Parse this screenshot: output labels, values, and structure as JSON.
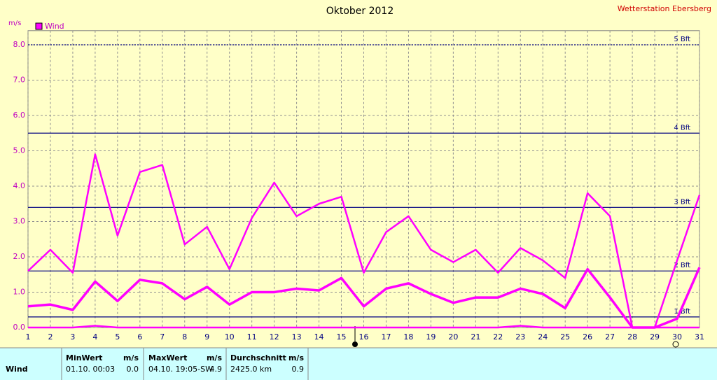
{
  "chart_data": {
    "type": "line",
    "title": "Oktober 2012",
    "station": "Wetterstation Ebersberg",
    "y_label": "m/s",
    "categories": [
      "1",
      "2",
      "3",
      "4",
      "5",
      "6",
      "7",
      "8",
      "9",
      "10",
      "11",
      "12",
      "13",
      "14",
      "15",
      "16",
      "17",
      "18",
      "19",
      "20",
      "21",
      "22",
      "23",
      "24",
      "25",
      "26",
      "27",
      "28",
      "29",
      "30",
      "31"
    ],
    "series": [
      {
        "name": "Wind",
        "color": "#ff00ff",
        "width": 3.5,
        "values": [
          0.6,
          0.65,
          0.5,
          1.3,
          0.75,
          1.35,
          1.25,
          0.8,
          1.15,
          0.65,
          1.0,
          1.0,
          1.1,
          1.05,
          1.4,
          0.6,
          1.1,
          1.25,
          0.95,
          0.7,
          0.85,
          0.85,
          1.1,
          0.95,
          0.55,
          1.65,
          0.85,
          0,
          0,
          0.25,
          1.7
        ]
      },
      {
        "color": "#ff00ff",
        "width": 2.5,
        "values": [
          1.6,
          2.2,
          1.55,
          4.9,
          2.6,
          4.4,
          4.6,
          2.35,
          2.85,
          1.65,
          3.1,
          4.1,
          3.15,
          3.5,
          3.7,
          1.55,
          2.7,
          3.15,
          2.2,
          1.85,
          2.2,
          1.55,
          2.25,
          1.9,
          1.4,
          3.8,
          3.15,
          0,
          0,
          1.9,
          3.75
        ]
      },
      {
        "color": "#ff00ff",
        "width": 2.5,
        "values": [
          0,
          0,
          0,
          0.05,
          0,
          0,
          0,
          0,
          0,
          0,
          0,
          0,
          0,
          0,
          0,
          0,
          0,
          0,
          0,
          0,
          0,
          0,
          0.05,
          0,
          0,
          0,
          0,
          0,
          0,
          0,
          0
        ]
      }
    ],
    "ylim": [
      0,
      8.4
    ],
    "yticks": [
      {
        "value": 0,
        "label": "0.0"
      },
      {
        "value": 1,
        "label": "1.0"
      },
      {
        "value": 2,
        "label": "2.0"
      },
      {
        "value": 3,
        "label": "3.0"
      },
      {
        "value": 4,
        "label": "4.0"
      },
      {
        "value": 5,
        "label": "5.0"
      },
      {
        "value": 6,
        "label": "6.0"
      },
      {
        "value": 7,
        "label": "7.0"
      },
      {
        "value": 8,
        "label": "8.0"
      }
    ],
    "grid": true,
    "reference_lines": [
      {
        "value": 8.0,
        "label": "5 Bft",
        "dashed": true
      },
      {
        "value": 5.5,
        "label": "4 Bft"
      },
      {
        "value": 3.4,
        "label": "3 Bft"
      },
      {
        "value": 1.6,
        "label": "2 Bft"
      },
      {
        "value": 0.3,
        "label": "1 Bft"
      }
    ]
  },
  "table": {
    "header": [
      "MinWert",
      "m/s",
      "MaxWert",
      "m/s",
      "Durchschnitt",
      "m/s"
    ],
    "rows": [
      [
        "Wind",
        "01.10.  00:03",
        "0.0",
        "04.10.  19:05-SW",
        "4.9",
        "2425.0 km",
        "0.9"
      ]
    ]
  }
}
